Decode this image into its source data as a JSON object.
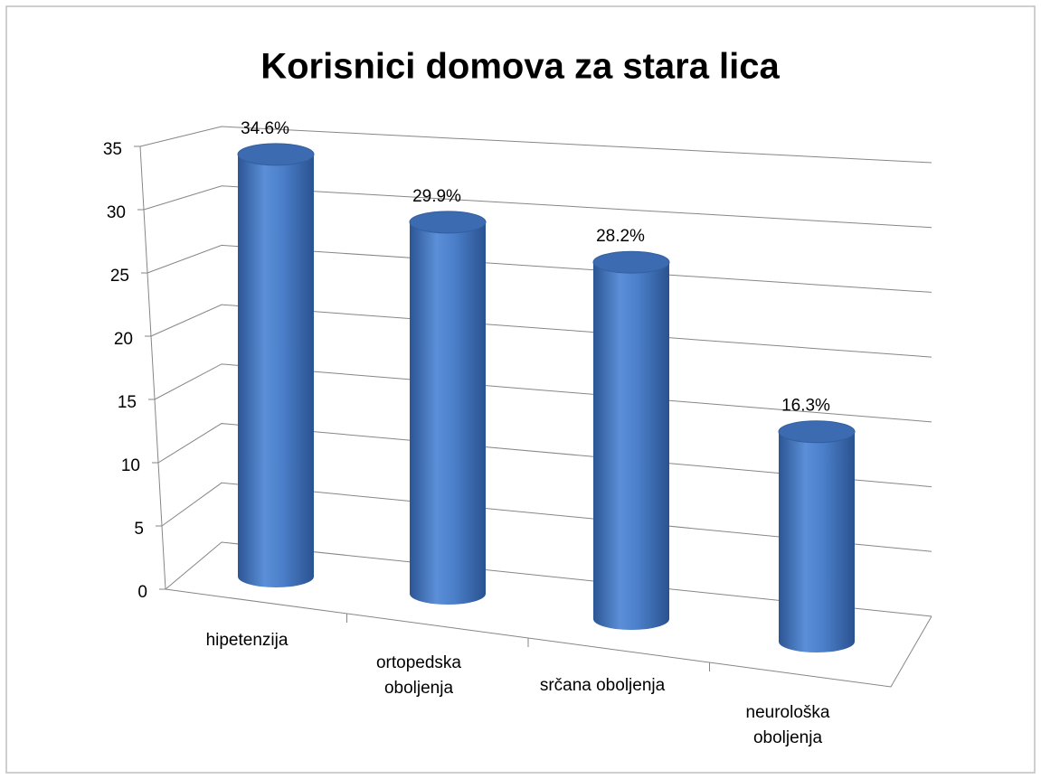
{
  "chart_data": {
    "type": "bar3d-cylinder",
    "title": "Korisnici domova za stara lica",
    "categories": [
      "hipetenzija",
      "ortopedska oboljenja",
      "srčana oboljenja",
      "neurološka oboljenja"
    ],
    "values": [
      34.6,
      29.9,
      28.2,
      16.3
    ],
    "value_labels": [
      "34.6%",
      "29.9%",
      "28.2%",
      "16.3%"
    ],
    "color": "#4a7ec8",
    "ylim": [
      0,
      35
    ],
    "yticks": [
      0,
      5,
      10,
      15,
      20,
      25,
      30,
      35
    ],
    "grid": true
  }
}
